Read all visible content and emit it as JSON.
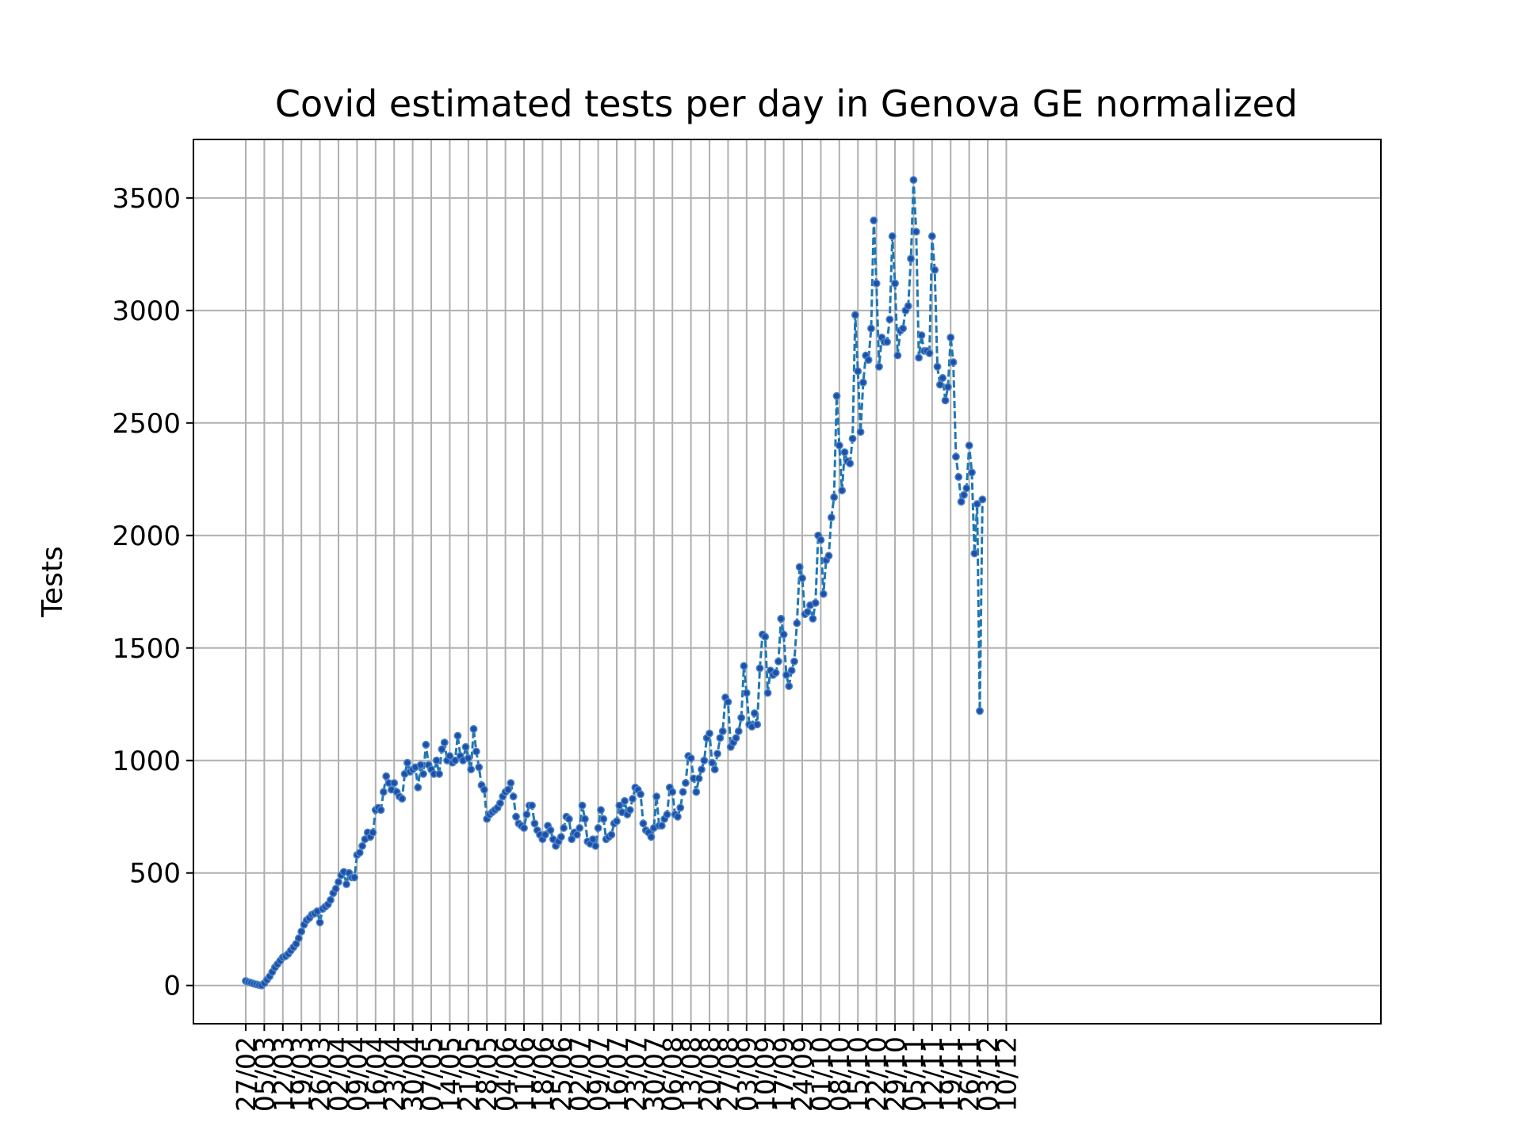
{
  "chart_data": {
    "type": "line",
    "title": "Covid estimated tests per day in Genova GE normalized",
    "xlabel": "",
    "ylabel": "Tests",
    "ylim": [
      -170,
      3760
    ],
    "yticks": [
      0,
      500,
      1000,
      1500,
      2000,
      2500,
      3000,
      3500
    ],
    "grid": true,
    "legend": "none",
    "line_style": "dashed",
    "marker": "dot",
    "color": "#1f77b4",
    "x_start": "27/02",
    "xticks": [
      "27/02",
      "05/03",
      "12/03",
      "19/03",
      "26/03",
      "02/04",
      "09/04",
      "16/04",
      "23/04",
      "30/04",
      "07/05",
      "14/05",
      "21/05",
      "28/05",
      "04/06",
      "11/06",
      "18/06",
      "25/06",
      "02/07",
      "09/07",
      "16/07",
      "23/07",
      "30/07",
      "06/08",
      "13/08",
      "20/08",
      "27/08",
      "03/09",
      "10/09",
      "17/09",
      "24/09",
      "01/10",
      "08/10",
      "15/10",
      "22/10",
      "29/10",
      "05/11",
      "12/11",
      "19/11",
      "26/11",
      "03/12",
      "10/12"
    ],
    "series": [
      {
        "values": [
          20,
          15,
          12,
          8,
          5,
          2,
          0,
          10,
          25,
          40,
          60,
          80,
          95,
          110,
          125,
          130,
          140,
          155,
          170,
          185,
          210,
          240,
          270,
          290,
          300,
          315,
          320,
          330,
          280,
          340,
          350,
          360,
          380,
          410,
          430,
          460,
          490,
          505,
          450,
          500,
          480,
          480,
          580,
          590,
          620,
          650,
          680,
          660,
          680,
          780,
          790,
          780,
          860,
          930,
          900,
          870,
          900,
          860,
          840,
          830,
          940,
          990,
          950,
          960,
          970,
          880,
          980,
          940,
          1070,
          980,
          960,
          940,
          1000,
          940,
          1050,
          1080,
          1000,
          1020,
          990,
          1000,
          1110,
          1020,
          1000,
          1060,
          1010,
          960,
          1140,
          1040,
          970,
          890,
          870,
          740,
          760,
          770,
          780,
          790,
          810,
          840,
          860,
          870,
          900,
          840,
          750,
          720,
          710,
          700,
          760,
          800,
          800,
          720,
          690,
          670,
          650,
          670,
          710,
          690,
          650,
          620,
          640,
          660,
          700,
          750,
          740,
          650,
          680,
          670,
          700,
          800,
          740,
          640,
          630,
          650,
          620,
          700,
          780,
          740,
          650,
          660,
          670,
          720,
          730,
          800,
          770,
          820,
          760,
          780,
          830,
          880,
          870,
          850,
          720,
          690,
          680,
          660,
          700,
          840,
          710,
          710,
          740,
          760,
          880,
          860,
          760,
          750,
          790,
          860,
          900,
          1020,
          1010,
          920,
          860,
          920,
          960,
          1000,
          1100,
          1120,
          990,
          960,
          1030,
          1100,
          1130,
          1280,
          1260,
          1060,
          1080,
          1100,
          1130,
          1190,
          1420,
          1300,
          1160,
          1150,
          1210,
          1160,
          1410,
          1560,
          1550,
          1300,
          1400,
          1380,
          1390,
          1440,
          1630,
          1560,
          1380,
          1330,
          1400,
          1440,
          1610,
          1860,
          1810,
          1650,
          1660,
          1690,
          1630,
          1700,
          2000,
          1980,
          1740,
          1890,
          1910,
          2080,
          2170,
          2620,
          2400,
          2200,
          2370,
          2330,
          2320,
          2430,
          2980,
          2730,
          2460,
          2680,
          2800,
          2780,
          2920,
          3400,
          3120,
          2750,
          2880,
          2860,
          2860,
          2960,
          3330,
          3120,
          2800,
          2910,
          2920,
          3000,
          3020,
          3230,
          3580,
          3350,
          2790,
          2890,
          2820,
          2820,
          2810,
          3330,
          3180,
          2750,
          2670,
          2700,
          2600,
          2660,
          2880,
          2770,
          2350,
          2260,
          2150,
          2180,
          2210,
          2400,
          2280,
          1920,
          2140,
          1220,
          2160
        ]
      }
    ]
  }
}
